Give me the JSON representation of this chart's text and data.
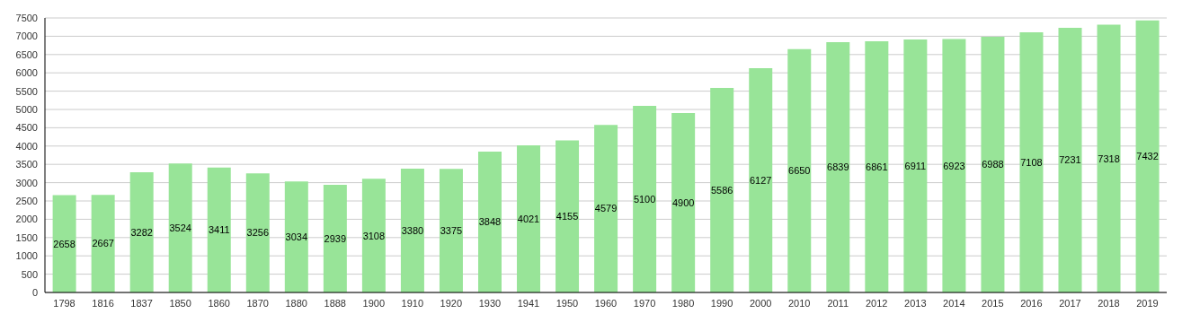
{
  "chart_data": {
    "type": "bar",
    "categories": [
      "1798",
      "1816",
      "1837",
      "1850",
      "1860",
      "1870",
      "1880",
      "1888",
      "1900",
      "1910",
      "1920",
      "1930",
      "1941",
      "1950",
      "1960",
      "1970",
      "1980",
      "1990",
      "2000",
      "2010",
      "2011",
      "2012",
      "2013",
      "2014",
      "2015",
      "2016",
      "2017",
      "2018",
      "2019"
    ],
    "values": [
      2658,
      2667,
      3282,
      3524,
      3411,
      3256,
      3034,
      2939,
      3108,
      3380,
      3375,
      3848,
      4021,
      4155,
      4579,
      5100,
      4900,
      5586,
      6127,
      6650,
      6839,
      6861,
      6911,
      6923,
      6988,
      7108,
      7231,
      7318,
      7432
    ],
    "color": "#98e498",
    "ylim": [
      0,
      7500
    ],
    "yticks": [
      0,
      500,
      1000,
      1500,
      2000,
      2500,
      3000,
      3500,
      4000,
      4500,
      5000,
      5500,
      6000,
      6500,
      7000,
      7500
    ],
    "grid": "y",
    "data_labels": true
  }
}
